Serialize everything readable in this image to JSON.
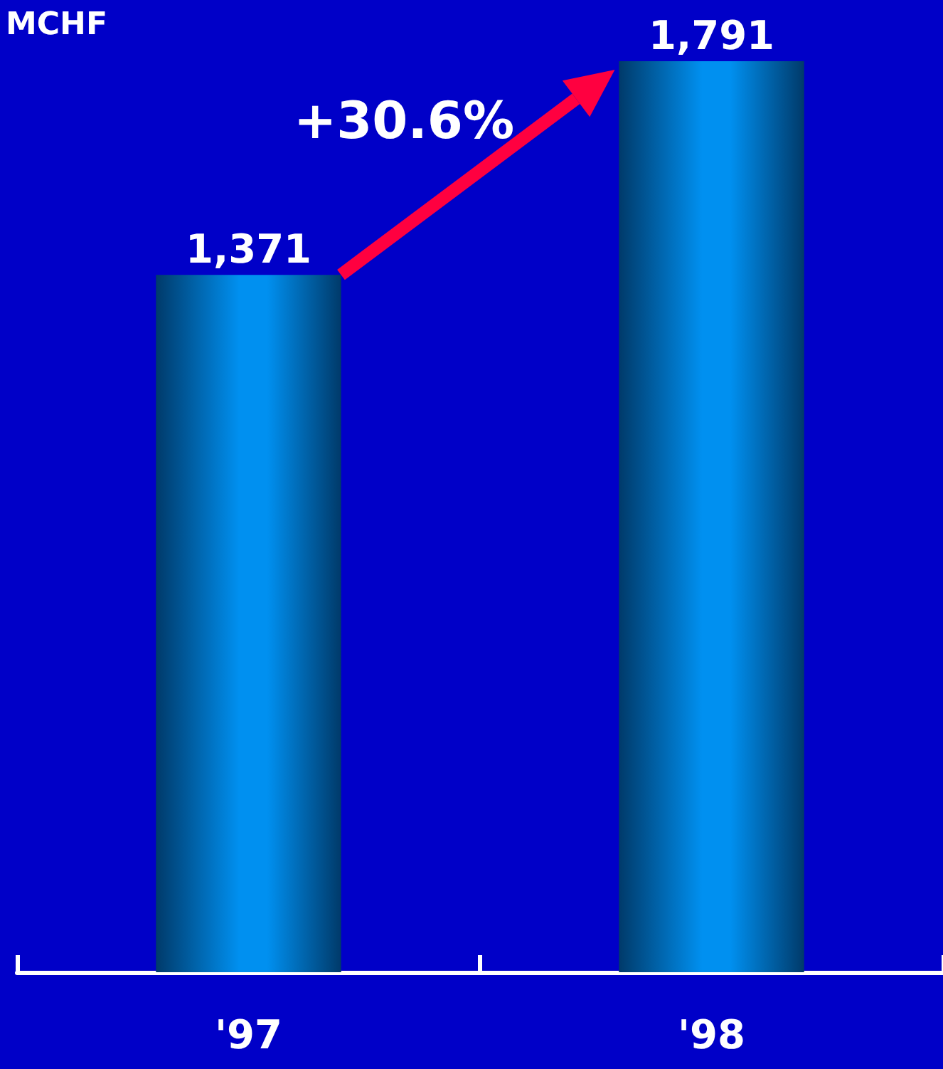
{
  "chart_data": {
    "type": "bar",
    "ylabel": "MCHF",
    "categories": [
      "'97",
      "'98"
    ],
    "values": [
      1371,
      1791
    ],
    "color": "#0090f0",
    "value_labels": [
      "1,371",
      "1,791"
    ],
    "annotations": [
      "+30.6%"
    ]
  }
}
